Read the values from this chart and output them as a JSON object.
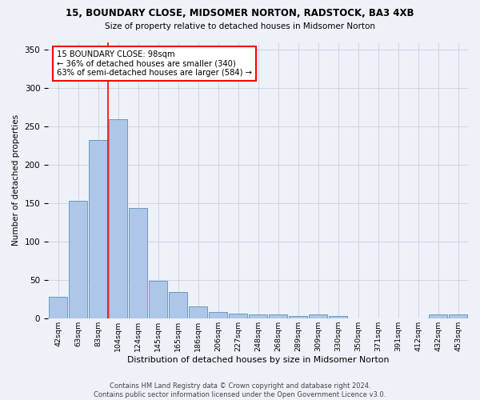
{
  "title": "15, BOUNDARY CLOSE, MIDSOMER NORTON, RADSTOCK, BA3 4XB",
  "subtitle": "Size of property relative to detached houses in Midsomer Norton",
  "xlabel": "Distribution of detached houses by size in Midsomer Norton",
  "ylabel": "Number of detached properties",
  "footer_line1": "Contains HM Land Registry data © Crown copyright and database right 2024.",
  "footer_line2": "Contains public sector information licensed under the Open Government Licence v3.0.",
  "categories": [
    "42sqm",
    "63sqm",
    "83sqm",
    "104sqm",
    "124sqm",
    "145sqm",
    "165sqm",
    "186sqm",
    "206sqm",
    "227sqm",
    "248sqm",
    "268sqm",
    "289sqm",
    "309sqm",
    "330sqm",
    "350sqm",
    "371sqm",
    "391sqm",
    "412sqm",
    "432sqm",
    "453sqm"
  ],
  "values": [
    28,
    153,
    232,
    260,
    144,
    49,
    35,
    16,
    9,
    6,
    5,
    5,
    3,
    5,
    3,
    0,
    0,
    0,
    0,
    5,
    5
  ],
  "bar_color": "#aec6e8",
  "bar_edge_color": "#6a9cc0",
  "grid_color": "#d0d8e8",
  "background_color": "#eef2f8",
  "vline_color": "red",
  "annotation_line1": "15 BOUNDARY CLOSE: 98sqm",
  "annotation_line2": "← 36% of detached houses are smaller (340)",
  "annotation_line3": "63% of semi-detached houses are larger (584) →",
  "annotation_box_color": "white",
  "annotation_box_edge_color": "red",
  "ylim": [
    0,
    360
  ],
  "yticks": [
    0,
    50,
    100,
    150,
    200,
    250,
    300,
    350
  ]
}
